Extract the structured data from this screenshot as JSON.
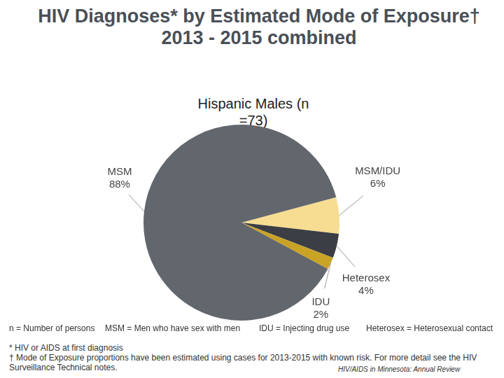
{
  "chart_data": {
    "type": "pie",
    "title": "HIV Diagnoses* by Estimated Mode of Exposure† 2013 - 2015 combined",
    "subtitle": "Hispanic Males (n =73)",
    "categories": [
      "MSM/IDU",
      "Heterosex",
      "IDU",
      "MSM"
    ],
    "values": [
      6,
      4,
      2,
      88
    ],
    "value_labels": [
      "6%",
      "4%",
      "2%",
      "88%"
    ],
    "colors": [
      "#f6dd91",
      "#3b3e44",
      "#c9a326",
      "#62666d"
    ],
    "data_labels": true,
    "footnotes": {
      "definitions": [
        "n = Number of persons",
        "MSM = Men who have sex with men",
        "IDU = Injecting drug use",
        "Heterosex = Heterosexual contact"
      ],
      "notes": [
        "* HIV or AIDS at first diagnosis",
        "† Mode of Exposure proportions have been estimated using cases for 2013-2015 with known risk. For more detail see the HIV Surveillance Technical notes."
      ]
    },
    "source": "HIV/AIDS in Minnesota: Annual Review"
  }
}
